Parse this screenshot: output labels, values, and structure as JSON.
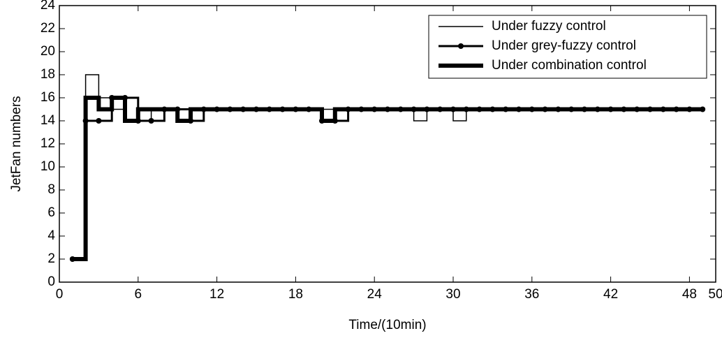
{
  "chart_data": {
    "type": "stairs",
    "xlabel": "Time/(10min)",
    "ylabel": "JetFan numbers",
    "x": [
      1,
      2,
      3,
      4,
      5,
      6,
      7,
      8,
      9,
      10,
      11,
      12,
      13,
      14,
      15,
      16,
      17,
      18,
      19,
      20,
      21,
      22,
      23,
      24,
      25,
      26,
      27,
      28,
      29,
      30,
      31,
      32,
      33,
      34,
      35,
      36,
      37,
      38,
      39,
      40,
      41,
      42,
      43,
      44,
      45,
      46,
      47,
      48,
      49
    ],
    "series": [
      {
        "name": "Under fuzzy control",
        "color": "#000000",
        "line_width": 1.5,
        "marker": false,
        "values": [
          2,
          18,
          16,
          15,
          16,
          15,
          14,
          15,
          14,
          15,
          15,
          15,
          15,
          15,
          15,
          15,
          15,
          15,
          15,
          15,
          15,
          15,
          15,
          15,
          15,
          15,
          14,
          15,
          15,
          14,
          15,
          15,
          15,
          15,
          15,
          15,
          15,
          15,
          15,
          15,
          15,
          15,
          15,
          15,
          15,
          15,
          15,
          15,
          15
        ]
      },
      {
        "name": "Under grey-fuzzy control",
        "color": "#000000",
        "line_width": 3,
        "marker": true,
        "values": [
          2,
          14,
          14,
          16,
          16,
          14,
          14,
          15,
          15,
          14,
          15,
          15,
          15,
          15,
          15,
          15,
          15,
          15,
          15,
          14,
          14,
          15,
          15,
          15,
          15,
          15,
          15,
          15,
          15,
          15,
          15,
          15,
          15,
          15,
          15,
          15,
          15,
          15,
          15,
          15,
          15,
          15,
          15,
          15,
          15,
          15,
          15,
          15,
          15
        ]
      },
      {
        "name": "Under combination control",
        "color": "#000000",
        "line_width": 6,
        "marker": false,
        "values": [
          2,
          16,
          15,
          16,
          14,
          15,
          15,
          15,
          14,
          15,
          15,
          15,
          15,
          15,
          15,
          15,
          15,
          15,
          15,
          14,
          15,
          15,
          15,
          15,
          15,
          15,
          15,
          15,
          15,
          15,
          15,
          15,
          15,
          15,
          15,
          15,
          15,
          15,
          15,
          15,
          15,
          15,
          15,
          15,
          15,
          15,
          15,
          15,
          15
        ]
      }
    ],
    "xlim": [
      0,
      50
    ],
    "xticks": [
      0,
      6,
      12,
      18,
      24,
      30,
      36,
      42,
      48,
      50
    ],
    "ylim": [
      0,
      24
    ],
    "yticks": [
      0,
      2,
      4,
      6,
      8,
      10,
      12,
      14,
      16,
      18,
      20,
      22,
      24
    ],
    "legend": "upper right"
  }
}
